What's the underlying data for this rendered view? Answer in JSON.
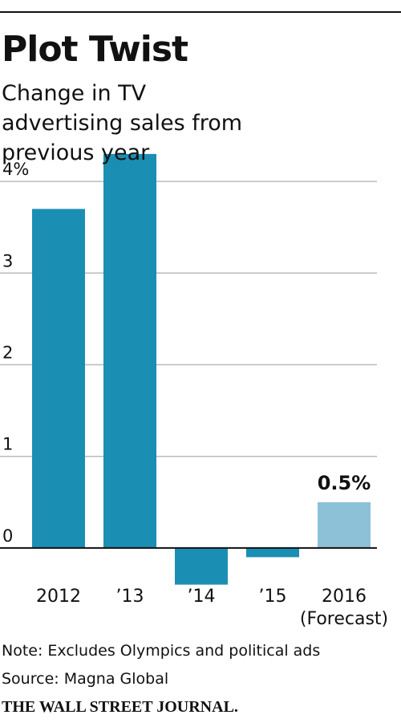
{
  "chart_data": {
    "type": "bar",
    "title": "Plot Twist",
    "subtitle": "Change in TV advertising sales from previous year",
    "categories": [
      "2012",
      "’13",
      "’14",
      "’15",
      "2016\n(Forecast)"
    ],
    "values": [
      3.7,
      4.3,
      -0.4,
      -0.1,
      0.5
    ],
    "value_labels": [
      null,
      null,
      null,
      null,
      "0.5%"
    ],
    "colors": [
      "#1a8fb3",
      "#1a8fb3",
      "#1a8fb3",
      "#1a8fb3",
      "#8cc1d7"
    ],
    "ylim": [
      -0.5,
      4.5
    ],
    "yticks": [
      0,
      1,
      2,
      3,
      {
        "value": 4,
        "label": "4%"
      }
    ],
    "grid": true,
    "note": "Note: Excludes Olympics and political ads",
    "source": "Source: Magna Global",
    "credit": "THE WALL STREET JOURNAL."
  }
}
